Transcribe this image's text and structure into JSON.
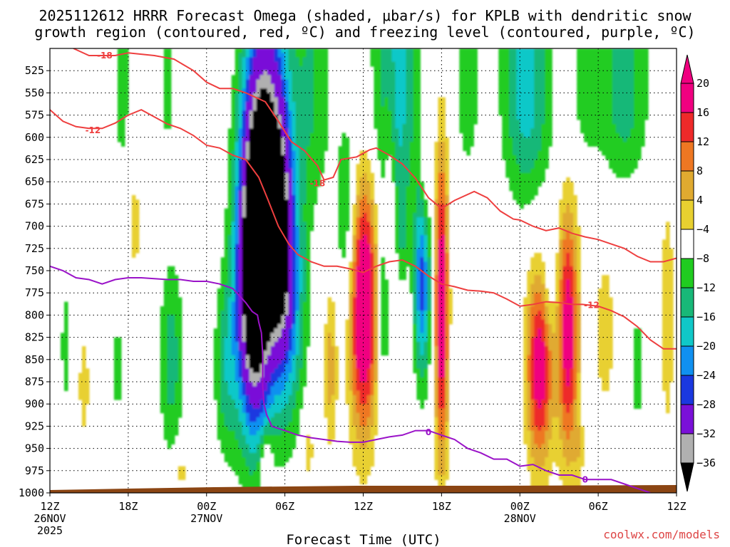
{
  "title_line1": "2025112612 HRRR Forecast Omega (shaded, μbar/s) for KPLB with dendritic snow",
  "title_line2": "growth region (contoured, red, ºC) and freezing level (contoured, purple, ºC)",
  "source": "coolwx.com/models",
  "chart_data": {
    "type": "time-height contour",
    "title": "2025112612 HRRR Forecast Omega (shaded, μbar/s) for KPLB with dendritic snow growth region (contoured, red, ºC) and freezing level (contoured, purple, ºC)",
    "xlabel": "Forecast Time (UTC)",
    "x_range_hours": [
      0,
      48
    ],
    "y_range_hpa": [
      1000,
      500
    ],
    "x_ticks": [
      {
        "h": 0,
        "label": "12Z",
        "sub": "26NOV",
        "sub2": "2025"
      },
      {
        "h": 6,
        "label": "18Z"
      },
      {
        "h": 12,
        "label": "00Z",
        "sub": "27NOV"
      },
      {
        "h": 18,
        "label": "06Z"
      },
      {
        "h": 24,
        "label": "12Z"
      },
      {
        "h": 30,
        "label": "18Z"
      },
      {
        "h": 36,
        "label": "00Z",
        "sub": "28NOV"
      },
      {
        "h": 42,
        "label": "06Z"
      },
      {
        "h": 48,
        "label": "12Z"
      }
    ],
    "y_ticks": [
      "525",
      "550",
      "575",
      "600",
      "625",
      "650",
      "675",
      "700",
      "725",
      "750",
      "775",
      "800",
      "825",
      "850",
      "875",
      "900",
      "925",
      "950",
      "975",
      "1000"
    ],
    "colorbar_labels": [
      "20",
      "16",
      "12",
      "8",
      "4",
      "−4",
      "−8",
      "−12",
      "−16",
      "−20",
      "−24",
      "−28",
      "−32",
      "−36"
    ],
    "colorbar_colors": [
      "#f00080",
      "#ee2a2a",
      "#ee7722",
      "#e0aa30",
      "#e8d030",
      "#ffffff",
      "#20cc20",
      "#18b878",
      "#10c8c8",
      "#1090f0",
      "#1a38e0",
      "#7a10d8",
      "#b0b0b0",
      "#000000"
    ],
    "omega_levels": [
      -32,
      -28,
      -24,
      -20,
      -16,
      -12,
      -8,
      -4,
      4,
      8,
      12,
      16,
      20
    ],
    "isotherm_red": [
      {
        "label": "-18",
        "label_h": 4.2,
        "label_p": 508,
        "points": [
          [
            1.8,
            500
          ],
          [
            3,
            508
          ],
          [
            5,
            508
          ],
          [
            6,
            505
          ],
          [
            8,
            508
          ],
          [
            9.5,
            512
          ],
          [
            11,
            525
          ],
          [
            12,
            538
          ],
          [
            13,
            545
          ],
          [
            14,
            545
          ],
          [
            15,
            550
          ],
          [
            16.5,
            560
          ],
          [
            17.5,
            582
          ],
          [
            18.5,
            605
          ],
          [
            19.5,
            615
          ],
          [
            20.5,
            632
          ],
          [
            21,
            648
          ],
          [
            21.7,
            645
          ],
          [
            22.3,
            625
          ],
          [
            23.5,
            622
          ],
          [
            24,
            618
          ],
          [
            24.5,
            614
          ],
          [
            25,
            612
          ],
          [
            26,
            620
          ],
          [
            27,
            630
          ],
          [
            28,
            646
          ],
          [
            29,
            668
          ],
          [
            30,
            680
          ],
          [
            31,
            671
          ],
          [
            32.5,
            661
          ],
          [
            33.5,
            668
          ],
          [
            34.5,
            683
          ],
          [
            35.5,
            692
          ],
          [
            36,
            693
          ],
          [
            37,
            700
          ],
          [
            38,
            705
          ],
          [
            39,
            702
          ],
          [
            40,
            708
          ],
          [
            41,
            712
          ],
          [
            42,
            715
          ],
          [
            43,
            720
          ],
          [
            44,
            725
          ],
          [
            45,
            734
          ],
          [
            46,
            740
          ],
          [
            47,
            740
          ],
          [
            48,
            736
          ]
        ]
      },
      {
        "label": "-12",
        "label_h": 3.3,
        "label_p": 592,
        "points": [
          [
            0,
            569
          ],
          [
            1,
            582
          ],
          [
            2,
            588
          ],
          [
            3,
            590
          ],
          [
            4,
            590
          ],
          [
            5,
            584
          ],
          [
            6,
            575
          ],
          [
            7,
            569
          ],
          [
            8,
            577
          ],
          [
            9,
            585
          ],
          [
            10,
            590
          ],
          [
            11,
            598
          ],
          [
            12,
            609
          ],
          [
            13,
            612
          ],
          [
            14,
            620
          ],
          [
            15,
            625
          ],
          [
            16,
            645
          ],
          [
            16.7,
            670
          ],
          [
            17.5,
            700
          ],
          [
            18.3,
            720
          ],
          [
            19,
            732
          ],
          [
            20,
            740
          ],
          [
            21,
            745
          ],
          [
            22,
            745
          ],
          [
            23,
            748
          ],
          [
            24,
            752
          ],
          [
            25,
            745
          ],
          [
            26,
            740
          ],
          [
            27,
            738
          ],
          [
            28,
            745
          ],
          [
            29,
            756
          ],
          [
            30,
            765
          ],
          [
            31,
            768
          ],
          [
            32,
            772
          ],
          [
            33,
            773
          ],
          [
            34,
            775
          ],
          [
            35,
            782
          ],
          [
            36,
            790
          ],
          [
            37,
            788
          ],
          [
            38,
            785
          ],
          [
            39,
            786
          ],
          [
            40,
            788
          ],
          [
            40.8,
            788
          ],
          [
            42,
            790
          ],
          [
            43,
            795
          ],
          [
            44,
            802
          ],
          [
            45,
            813
          ],
          [
            46,
            828
          ],
          [
            47,
            838
          ],
          [
            48,
            838
          ]
        ]
      }
    ],
    "isotherm_purple": {
      "label": "0",
      "points": [
        [
          0,
          745
        ],
        [
          1,
          750
        ],
        [
          2,
          758
        ],
        [
          3,
          760
        ],
        [
          4,
          765
        ],
        [
          5,
          760
        ],
        [
          6,
          758
        ],
        [
          7,
          758
        ],
        [
          8,
          759
        ],
        [
          9,
          760
        ],
        [
          10,
          760
        ],
        [
          11,
          762
        ],
        [
          12,
          762
        ],
        [
          13,
          765
        ],
        [
          14,
          770
        ],
        [
          15,
          786
        ],
        [
          15.5,
          796
        ],
        [
          15.9,
          800
        ],
        [
          16,
          808
        ],
        [
          16.2,
          820
        ],
        [
          16.3,
          845
        ],
        [
          16.3,
          880
        ],
        [
          16.4,
          900
        ],
        [
          16.6,
          912
        ],
        [
          17,
          925
        ],
        [
          18,
          930
        ],
        [
          19,
          935
        ],
        [
          20,
          938
        ],
        [
          21,
          940
        ],
        [
          22,
          942
        ],
        [
          23,
          943
        ],
        [
          24,
          943
        ],
        [
          25,
          940
        ],
        [
          26,
          937
        ],
        [
          27,
          935
        ],
        [
          28,
          930
        ],
        [
          29,
          930
        ],
        [
          30,
          935
        ],
        [
          31,
          940
        ],
        [
          32,
          950
        ],
        [
          33,
          955
        ],
        [
          34,
          962
        ],
        [
          35,
          962
        ],
        [
          36,
          970
        ],
        [
          37,
          968
        ],
        [
          38,
          975
        ],
        [
          39,
          980
        ],
        [
          40,
          980
        ],
        [
          41,
          985
        ],
        [
          42,
          985
        ],
        [
          43,
          985
        ],
        [
          44,
          990
        ],
        [
          45,
          995
        ],
        [
          46,
          1000
        ]
      ]
    },
    "omega_blobs_description": "strong rising motion (negative omega) columns near 12Z-06Z 27NOV and 18Z 27NOV; sinking (positive) maxima near 12Z 27NOV, 18Z 27NOV, 00Z-06Z 28NOV"
  }
}
